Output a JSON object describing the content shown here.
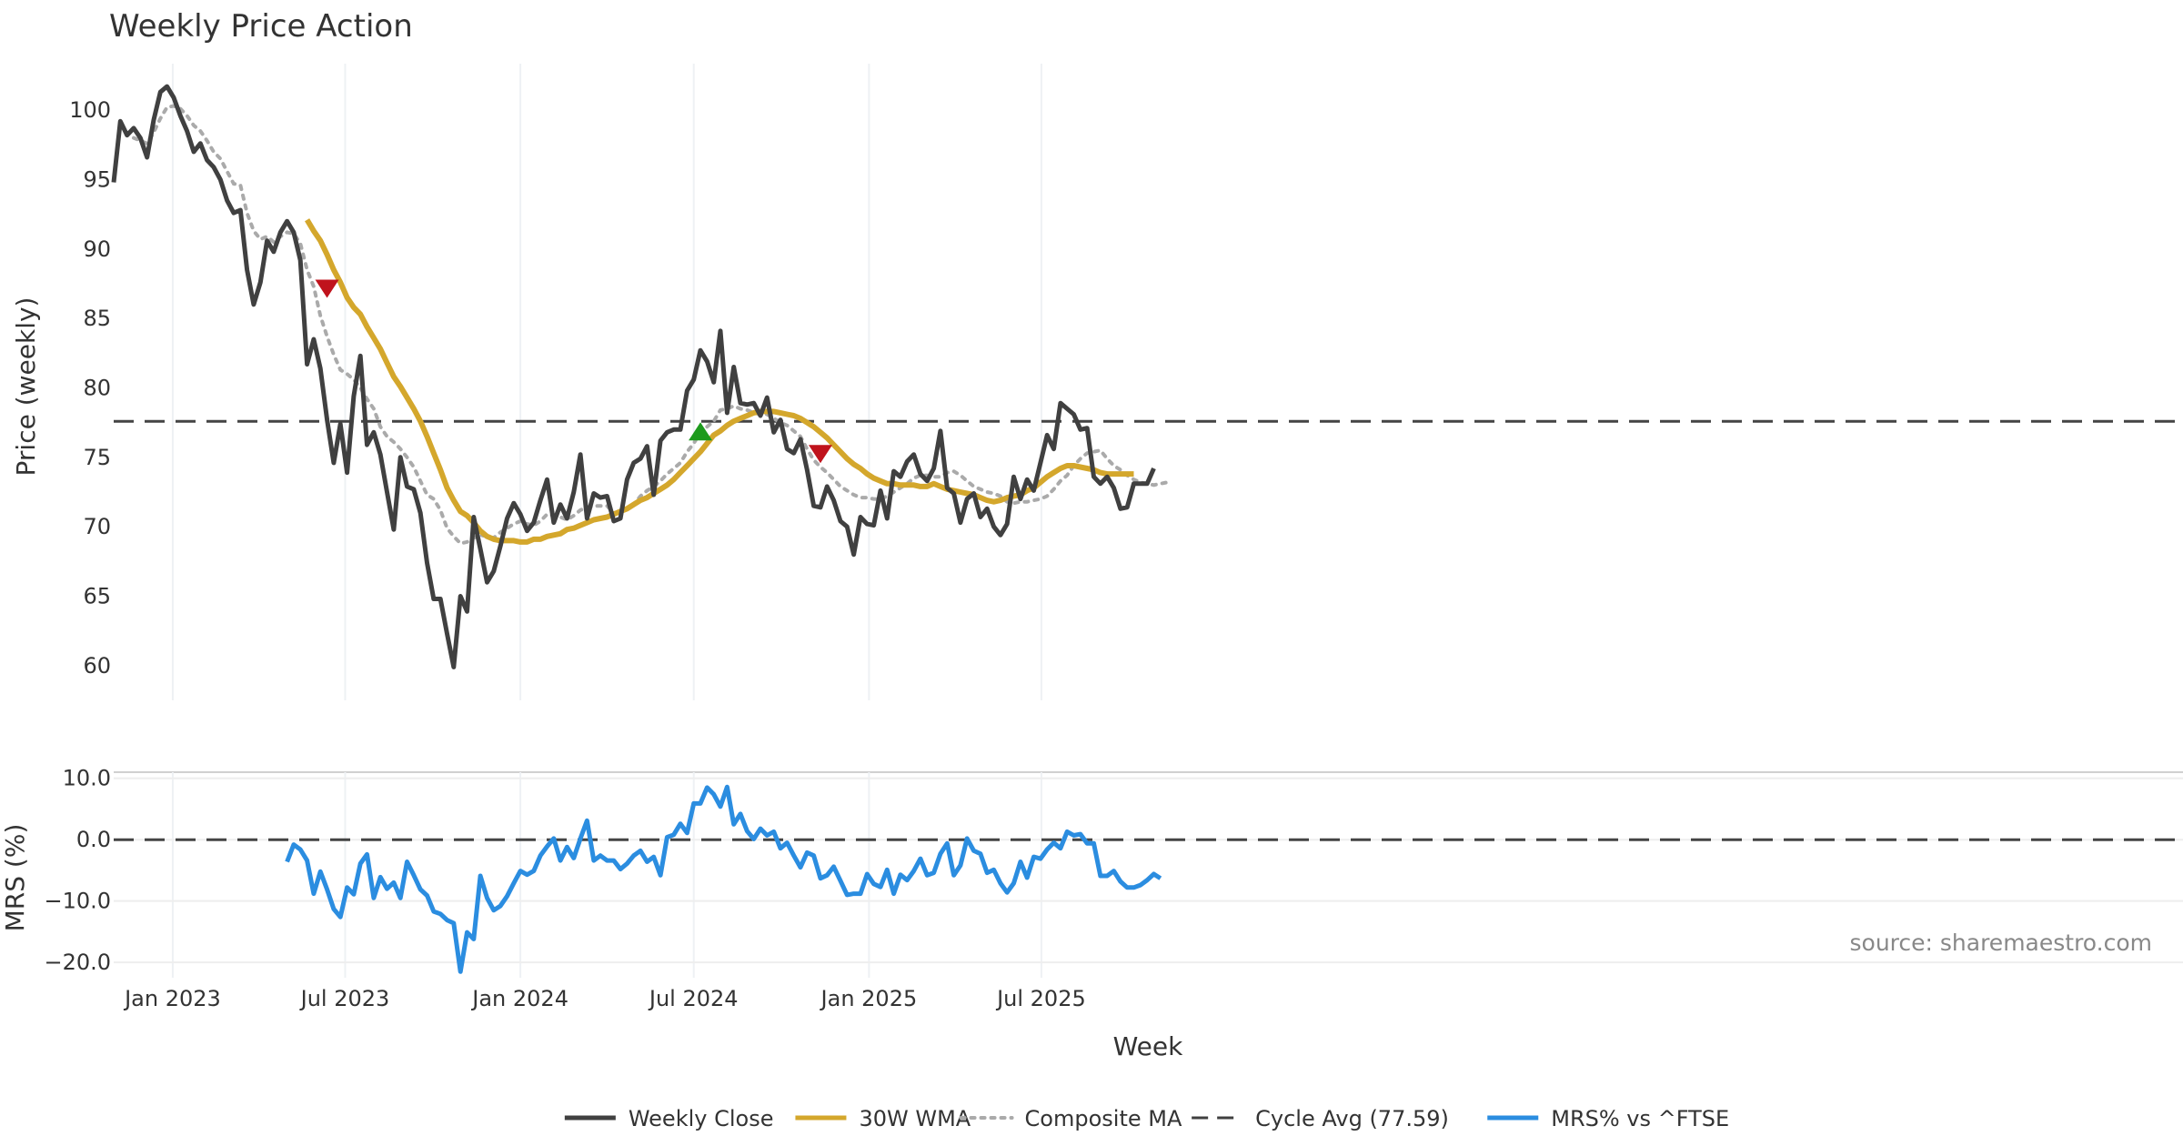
{
  "chart_data": {
    "type": "line",
    "title": "Weekly Price Action",
    "xlabel": "Week",
    "x_ticks": [
      "Jan 2023",
      "Jul 2023",
      "Jan 2024",
      "Jul 2024",
      "Jan 2025",
      "Jul 2025"
    ],
    "x_range": [
      "2022-10-31",
      "2025-10-27"
    ],
    "source": "source: sharemaestro.com",
    "price_panel": {
      "ylabel": "Price (weekly)",
      "ylim": [
        57.5,
        104
      ],
      "yticks": [
        60,
        65,
        70,
        75,
        80,
        85,
        90,
        95,
        100
      ],
      "cycle_avg": 77.59,
      "series": [
        {
          "name": "Weekly Close",
          "color": "#404040",
          "values": [
            94.8,
            99.2,
            98.2,
            98.7,
            98.0,
            96.6,
            99.3,
            101.3,
            101.7,
            100.9,
            99.6,
            98.5,
            97.0,
            97.6,
            96.4,
            95.9,
            95.0,
            93.5,
            92.6,
            92.8,
            88.5,
            86.0,
            87.6,
            90.6,
            89.8,
            91.2,
            92.0,
            91.2,
            89.2,
            81.7,
            83.5,
            81.4,
            77.7,
            74.6,
            77.4,
            73.9,
            79.4,
            82.3,
            75.9,
            76.8,
            75.2,
            72.5,
            69.8,
            75.0,
            72.9,
            72.7,
            71.0,
            67.4,
            64.8,
            64.8,
            62.3,
            59.9,
            65.0,
            63.9,
            70.7,
            68.4,
            66.0,
            66.8,
            68.6,
            70.6,
            71.7,
            70.9,
            69.7,
            70.3,
            71.9,
            73.4,
            70.3,
            71.6,
            70.6,
            72.5,
            75.2,
            70.6,
            72.4,
            72.1,
            72.2,
            70.4,
            70.6,
            73.4,
            74.6,
            74.9,
            75.8,
            72.3,
            76.2,
            76.8,
            77.0,
            77.0,
            79.8,
            80.6,
            82.7,
            81.9,
            80.4,
            84.1,
            78.2,
            81.5,
            78.9,
            78.8,
            78.9,
            78.0,
            79.3,
            76.8,
            77.7,
            75.6,
            75.3,
            76.3,
            74.1,
            71.5,
            71.4,
            72.9,
            71.9,
            70.4,
            70.0,
            68.0,
            70.7,
            70.2,
            70.1,
            72.6,
            70.6,
            74.0,
            73.6,
            74.7,
            75.2,
            73.8,
            73.3,
            74.2,
            76.9,
            72.8,
            72.4,
            70.3,
            72.0,
            72.4,
            70.7,
            71.3,
            70.0,
            69.4,
            70.2,
            73.6,
            72.0,
            73.4,
            72.6,
            74.6,
            76.6,
            75.6,
            78.9,
            78.5,
            78.1,
            77.0,
            77.1,
            73.6,
            73.1,
            73.6,
            72.8,
            71.3,
            71.4,
            73.1,
            73.1,
            73.1,
            74.2
          ]
        },
        {
          "name": "30W WMA",
          "color": "#d4a72c",
          "start_index": 29,
          "values": [
            92.1,
            91.3,
            90.6,
            89.6,
            88.5,
            87.6,
            86.5,
            85.8,
            85.3,
            84.4,
            83.6,
            82.8,
            81.8,
            80.8,
            80.1,
            79.3,
            78.5,
            77.6,
            76.5,
            75.3,
            74.1,
            72.8,
            71.9,
            71.1,
            70.8,
            70.3,
            69.7,
            69.3,
            69.1,
            69.0,
            69.0,
            69.0,
            68.9,
            68.9,
            69.1,
            69.1,
            69.3,
            69.4,
            69.5,
            69.8,
            69.9,
            70.1,
            70.3,
            70.5,
            70.6,
            70.7,
            70.9,
            71.1,
            71.3,
            71.6,
            71.9,
            72.1,
            72.4,
            72.7,
            73.0,
            73.4,
            73.9,
            74.4,
            74.9,
            75.4,
            76.0,
            76.6,
            76.9,
            77.3,
            77.6,
            77.8,
            78.0,
            78.2,
            78.3,
            78.3,
            78.3,
            78.2,
            78.1,
            78.0,
            77.8,
            77.5,
            77.2,
            76.8,
            76.4,
            75.9,
            75.4,
            74.9,
            74.5,
            74.2,
            73.8,
            73.5,
            73.3,
            73.1,
            73.1,
            73.0,
            73.0,
            73.0,
            72.9,
            72.9,
            73.1,
            72.9,
            72.7,
            72.6,
            72.5,
            72.4,
            72.3,
            72.1,
            71.9,
            71.8,
            71.9,
            72.1,
            72.2,
            72.3,
            72.6,
            72.8,
            73.2,
            73.6,
            73.9,
            74.2,
            74.4,
            74.4,
            74.3,
            74.2,
            74.1,
            73.9,
            73.8,
            73.8,
            73.8,
            73.8,
            73.8
          ]
        },
        {
          "name": "Composite MA",
          "color": "#aaaaaa",
          "values": [
            null,
            null,
            null,
            98.0,
            97.8,
            97.6,
            98.4,
            99.4,
            100.2,
            100.3,
            100.1,
            99.6,
            98.9,
            98.5,
            97.8,
            97.0,
            96.5,
            95.6,
            94.7,
            94.6,
            92.6,
            91.3,
            90.7,
            90.9,
            90.5,
            90.9,
            91.2,
            91.1,
            90.4,
            88.5,
            87.3,
            85.2,
            83.7,
            82.4,
            81.3,
            81.0,
            80.6,
            80.0,
            79.2,
            78.5,
            77.2,
            76.5,
            76.1,
            75.6,
            75.0,
            74.3,
            73.3,
            72.3,
            72.0,
            71.2,
            69.9,
            69.3,
            68.8,
            68.9,
            69.2,
            69.4,
            69.3,
            69.2,
            69.6,
            69.9,
            70.2,
            70.4,
            70.2,
            70.1,
            70.4,
            70.9,
            70.8,
            70.7,
            70.5,
            70.8,
            71.2,
            71.4,
            71.5,
            71.5,
            71.5,
            71.0,
            71.0,
            71.3,
            71.6,
            72.2,
            72.6,
            72.9,
            73.3,
            73.8,
            74.2,
            74.6,
            75.4,
            76.0,
            76.8,
            77.2,
            77.6,
            78.4,
            78.5,
            78.7,
            78.5,
            78.4,
            78.2,
            78.1,
            78.1,
            77.8,
            77.5,
            77.3,
            76.9,
            76.5,
            75.6,
            74.8,
            74.3,
            73.9,
            73.4,
            72.9,
            72.6,
            72.3,
            72.1,
            72.1,
            72.0,
            72.0,
            72.2,
            72.5,
            72.8,
            73.1,
            73.5,
            73.7,
            73.7,
            73.6,
            73.6,
            73.9,
            74.0,
            73.7,
            73.3,
            72.9,
            72.7,
            72.5,
            72.4,
            72.2,
            71.8,
            71.7,
            71.8,
            71.8,
            71.9,
            72.0,
            72.2,
            72.7,
            73.3,
            73.7,
            74.4,
            74.9,
            75.3,
            75.4,
            75.5,
            74.9,
            74.4,
            74.1,
            73.7,
            73.4,
            73.2,
            73.1,
            73.0,
            73.1,
            73.2
          ]
        }
      ],
      "markers": [
        {
          "type": "sell",
          "index": 32,
          "value": 87.2,
          "color": "#c0131c"
        },
        {
          "type": "buy",
          "index": 88,
          "value": 76.8,
          "color": "#1d9a1d"
        },
        {
          "type": "sell",
          "index": 106,
          "value": 75.3,
          "color": "#c0131c"
        }
      ]
    },
    "mrs_panel": {
      "ylabel": "MRS (%)",
      "ylim": [
        -22.5,
        11
      ],
      "yticks": [
        10.0,
        0.0,
        -10.0,
        -20.0
      ],
      "ytick_labels": [
        "10.0",
        "0.0",
        "−10.0",
        "−20.0"
      ],
      "zero_line": 0.0,
      "series": [
        {
          "name": "MRS% vs ^FTSE",
          "color": "#2b8de0",
          "start_index": 26,
          "values": [
            -3.6,
            -0.8,
            -1.6,
            -3.4,
            -8.8,
            -5.2,
            -8.1,
            -11.3,
            -12.6,
            -7.8,
            -8.9,
            -3.9,
            -2.4,
            -9.5,
            -6.1,
            -8.0,
            -7.0,
            -9.5,
            -3.6,
            -5.8,
            -8.1,
            -9.1,
            -11.7,
            -12.1,
            -13.1,
            -13.6,
            -21.5,
            -15.1,
            -16.2,
            -5.9,
            -9.5,
            -11.5,
            -10.8,
            -9.2,
            -7.1,
            -5.1,
            -5.7,
            -5.1,
            -2.6,
            -1.1,
            0.2,
            -3.4,
            -1.2,
            -3.0,
            0.2,
            3.1,
            -3.4,
            -2.6,
            -3.4,
            -3.4,
            -4.8,
            -3.9,
            -2.6,
            -1.8,
            -3.6,
            -2.8,
            -5.8,
            0.4,
            0.8,
            2.6,
            1.1,
            5.9,
            5.9,
            8.5,
            7.4,
            5.4,
            8.6,
            2.5,
            4.2,
            1.4,
            0.1,
            1.8,
            0.7,
            1.3,
            -1.4,
            -0.5,
            -2.6,
            -4.5,
            -2.1,
            -2.6,
            -6.3,
            -5.8,
            -4.4,
            -6.7,
            -9.0,
            -8.8,
            -8.8,
            -5.6,
            -7.2,
            -7.7,
            -4.9,
            -8.8,
            -5.7,
            -6.6,
            -5.1,
            -3.1,
            -5.8,
            -5.4,
            -2.3,
            -0.6,
            -5.8,
            -4.2,
            0.2,
            -1.8,
            -2.3,
            -5.4,
            -4.9,
            -7.1,
            -8.6,
            -7.1,
            -3.6,
            -6.2,
            -2.8,
            -3.1,
            -1.6,
            -0.5,
            -1.4,
            1.3,
            0.7,
            0.9,
            -0.6,
            -0.6,
            -5.9,
            -5.9,
            -5.1,
            -6.8,
            -7.8,
            -7.8,
            -7.4,
            -6.6,
            -5.6,
            -6.3
          ]
        }
      ]
    },
    "legend": [
      {
        "label": "Weekly Close",
        "style": "solid",
        "color": "#404040"
      },
      {
        "label": "30W WMA",
        "style": "solid",
        "color": "#d4a72c"
      },
      {
        "label": "Composite MA",
        "style": "dotted",
        "color": "#aaaaaa"
      },
      {
        "label": "Cycle Avg (77.59)",
        "style": "dashed",
        "color": "#404040"
      },
      {
        "label": "MRS% vs ^FTSE",
        "style": "solid",
        "color": "#2b8de0"
      }
    ],
    "legend_position": "bottom-center"
  }
}
